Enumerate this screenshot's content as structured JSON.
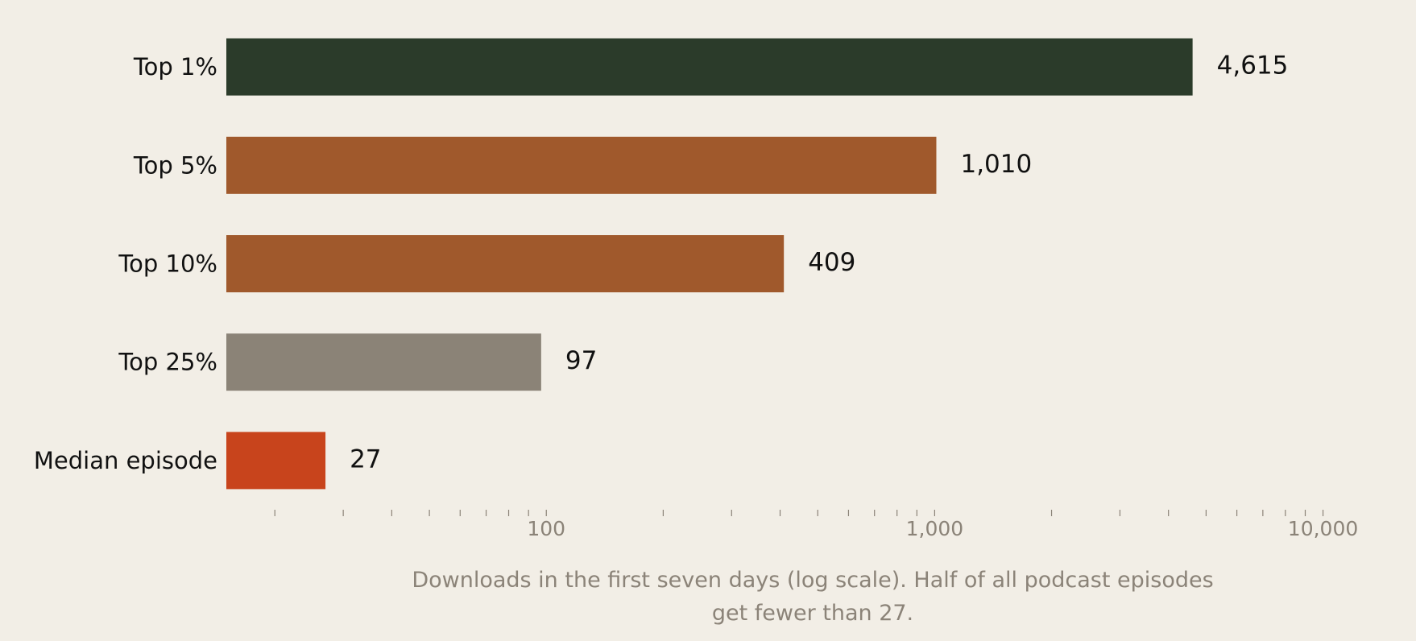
{
  "chart_data": {
    "type": "bar",
    "orientation": "horizontal",
    "categories": [
      "Top 1%",
      "Top 5%",
      "Top 10%",
      "Top 25%",
      "Median episode"
    ],
    "values": [
      4615,
      1010,
      409,
      97,
      27
    ],
    "value_labels": [
      "4,615",
      "1,010",
      "409",
      "97",
      "27"
    ],
    "colors": [
      "#2b3b2a",
      "#a0592c",
      "#a0592c",
      "#8b8377",
      "#c8441c"
    ],
    "xscale": "log",
    "xlim": [
      15,
      14000
    ],
    "xticks": [
      100,
      {
        "value": 1000,
        "label": "1,000"
      },
      {
        "value": 10000,
        "label": "10,000"
      }
    ],
    "xticks_minor": [
      20,
      30,
      40,
      50,
      60,
      70,
      80,
      90,
      200,
      300,
      400,
      500,
      600,
      700,
      800,
      900,
      2000,
      3000,
      4000,
      5000,
      6000,
      7000,
      8000,
      9000
    ],
    "caption": "Downloads in the first seven days (log scale). Half of all podcast episodes get fewer than 27."
  }
}
